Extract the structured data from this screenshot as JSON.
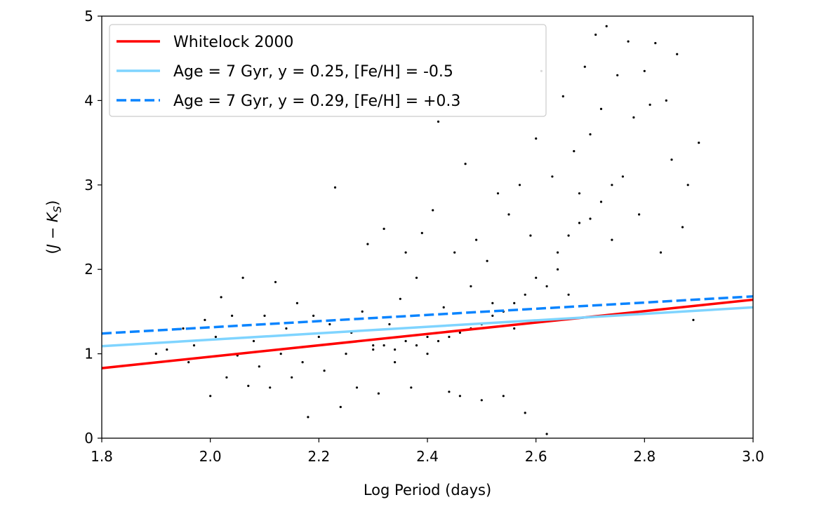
{
  "chart_data": {
    "type": "scatter",
    "title": "",
    "xlabel": "Log Period (days)",
    "ylabel_parts": {
      "open": "(",
      "j": "J",
      "minus": " − ",
      "k": "K",
      "sub": "S",
      "close": ")"
    },
    "xlim": [
      1.8,
      3.0
    ],
    "ylim": [
      0,
      5
    ],
    "x_ticks": [
      1.8,
      2.0,
      2.2,
      2.4,
      2.6,
      2.8,
      3.0
    ],
    "x_tick_labels": [
      "1.8",
      "2.0",
      "2.2",
      "2.4",
      "2.6",
      "2.8",
      "3.0"
    ],
    "y_ticks": [
      0,
      1,
      2,
      3,
      4,
      5
    ],
    "y_tick_labels": [
      "0",
      "1",
      "2",
      "3",
      "4",
      "5"
    ],
    "grid": false,
    "legend_position": "top-left",
    "series": [
      {
        "name": "Whitelock 2000",
        "kind": "line",
        "style": "solid",
        "color": "#ff0000",
        "x": [
          1.8,
          3.0
        ],
        "y": [
          0.83,
          1.64
        ]
      },
      {
        "name": "Age = 7 Gyr, y = 0.25, [Fe/H] = -0.5",
        "kind": "line",
        "style": "solid",
        "color": "#7fd4ff",
        "x": [
          1.8,
          3.0
        ],
        "y": [
          1.09,
          1.55
        ]
      },
      {
        "name": "Age = 7 Gyr, y = 0.29, [Fe/H] = +0.3",
        "kind": "line",
        "style": "dashed",
        "color": "#0a84ff",
        "x": [
          1.8,
          3.0
        ],
        "y": [
          1.24,
          1.68
        ]
      }
    ],
    "scatter": {
      "color": "#000000",
      "points": [
        [
          1.9,
          1.0
        ],
        [
          1.92,
          1.05
        ],
        [
          1.95,
          1.3
        ],
        [
          1.96,
          0.9
        ],
        [
          1.97,
          1.1
        ],
        [
          1.99,
          1.4
        ],
        [
          2.0,
          0.5
        ],
        [
          2.01,
          1.2
        ],
        [
          2.02,
          1.67
        ],
        [
          2.03,
          0.72
        ],
        [
          2.04,
          1.45
        ],
        [
          2.05,
          0.98
        ],
        [
          2.06,
          1.9
        ],
        [
          2.07,
          0.62
        ],
        [
          2.08,
          1.15
        ],
        [
          2.09,
          0.85
        ],
        [
          2.1,
          1.45
        ],
        [
          2.11,
          0.6
        ],
        [
          2.12,
          1.85
        ],
        [
          2.13,
          1.0
        ],
        [
          2.14,
          1.3
        ],
        [
          2.15,
          0.72
        ],
        [
          2.16,
          1.6
        ],
        [
          2.17,
          0.9
        ],
        [
          2.18,
          0.25
        ],
        [
          2.19,
          1.45
        ],
        [
          2.2,
          1.2
        ],
        [
          2.21,
          0.8
        ],
        [
          2.22,
          1.35
        ],
        [
          2.23,
          2.97
        ],
        [
          2.24,
          0.37
        ],
        [
          2.25,
          1.0
        ],
        [
          2.26,
          1.25
        ],
        [
          2.27,
          0.6
        ],
        [
          2.28,
          1.5
        ],
        [
          2.29,
          2.3
        ],
        [
          2.3,
          1.1
        ],
        [
          2.31,
          0.53
        ],
        [
          2.32,
          2.48
        ],
        [
          2.33,
          1.35
        ],
        [
          2.34,
          0.9
        ],
        [
          2.35,
          1.65
        ],
        [
          2.36,
          2.2
        ],
        [
          2.37,
          0.6
        ],
        [
          2.38,
          1.9
        ],
        [
          2.39,
          2.43
        ],
        [
          2.4,
          1.0
        ],
        [
          2.41,
          2.7
        ],
        [
          2.42,
          3.75
        ],
        [
          2.43,
          1.55
        ],
        [
          2.44,
          0.55
        ],
        [
          2.45,
          2.2
        ],
        [
          2.46,
          0.5
        ],
        [
          2.47,
          3.25
        ],
        [
          2.48,
          1.8
        ],
        [
          2.49,
          2.35
        ],
        [
          2.5,
          0.45
        ],
        [
          2.51,
          2.1
        ],
        [
          2.52,
          1.6
        ],
        [
          2.53,
          2.9
        ],
        [
          2.54,
          0.5
        ],
        [
          2.55,
          2.65
        ],
        [
          2.56,
          1.3
        ],
        [
          2.57,
          3.0
        ],
        [
          2.58,
          0.3
        ],
        [
          2.59,
          2.4
        ],
        [
          2.6,
          3.55
        ],
        [
          2.61,
          4.35
        ],
        [
          2.62,
          0.05
        ],
        [
          2.63,
          3.1
        ],
        [
          2.64,
          2.2
        ],
        [
          2.65,
          4.05
        ],
        [
          2.66,
          1.7
        ],
        [
          2.67,
          3.4
        ],
        [
          2.68,
          2.55
        ],
        [
          2.69,
          4.4
        ],
        [
          2.7,
          3.6
        ],
        [
          2.71,
          4.78
        ],
        [
          2.72,
          3.9
        ],
        [
          2.73,
          4.88
        ],
        [
          2.74,
          2.35
        ],
        [
          2.75,
          4.3
        ],
        [
          2.76,
          3.1
        ],
        [
          2.77,
          4.7
        ],
        [
          2.78,
          3.8
        ],
        [
          2.79,
          2.65
        ],
        [
          2.8,
          4.35
        ],
        [
          2.81,
          3.95
        ],
        [
          2.82,
          4.68
        ],
        [
          2.83,
          2.2
        ],
        [
          2.84,
          4.0
        ],
        [
          2.85,
          3.3
        ],
        [
          2.86,
          4.55
        ],
        [
          2.87,
          2.5
        ],
        [
          2.88,
          3.0
        ],
        [
          2.89,
          1.4
        ],
        [
          2.9,
          3.5
        ],
        [
          2.74,
          3.0
        ],
        [
          2.72,
          2.8
        ],
        [
          2.7,
          2.6
        ],
        [
          2.68,
          2.9
        ],
        [
          2.66,
          2.4
        ],
        [
          2.64,
          2.0
        ],
        [
          2.62,
          1.8
        ],
        [
          2.6,
          1.9
        ],
        [
          2.58,
          1.7
        ],
        [
          2.56,
          1.6
        ],
        [
          2.54,
          1.5
        ],
        [
          2.52,
          1.45
        ],
        [
          2.5,
          1.35
        ],
        [
          2.48,
          1.3
        ],
        [
          2.46,
          1.25
        ],
        [
          2.44,
          1.2
        ],
        [
          2.42,
          1.15
        ],
        [
          2.4,
          1.2
        ],
        [
          2.38,
          1.1
        ],
        [
          2.36,
          1.15
        ],
        [
          2.34,
          1.05
        ],
        [
          2.32,
          1.1
        ],
        [
          2.3,
          1.05
        ]
      ]
    }
  }
}
